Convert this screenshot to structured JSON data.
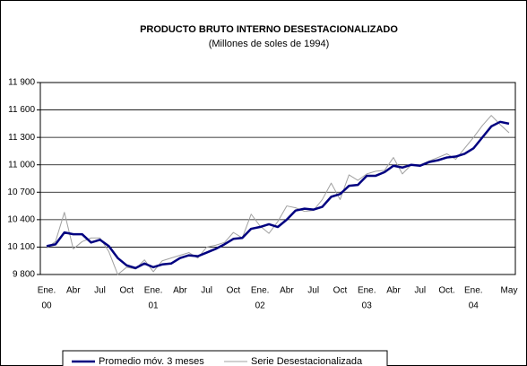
{
  "chart_data": {
    "type": "line",
    "title": "PRODUCTO BRUTO INTERNO DESESTACIONALIZADO",
    "subtitle": "(Millones de soles de 1994)",
    "categories": [
      "Ene.",
      null,
      null,
      "Abr",
      null,
      null,
      "Jul",
      null,
      null,
      "Oct",
      null,
      null,
      "Ene.",
      null,
      null,
      "Abr",
      null,
      null,
      "Jul",
      null,
      null,
      "Oct",
      null,
      null,
      "Ene.",
      null,
      null,
      "Abr",
      null,
      null,
      "Jul",
      null,
      null,
      "Oct",
      null,
      null,
      "Ene.",
      null,
      null,
      "Abr",
      null,
      null,
      "Jul",
      null,
      null,
      "Oct.",
      null,
      null,
      "Ene.",
      null,
      null,
      null,
      "May"
    ],
    "category_years": [
      "00",
      null,
      null,
      null,
      null,
      null,
      null,
      null,
      null,
      null,
      null,
      null,
      "01",
      null,
      null,
      null,
      null,
      null,
      null,
      null,
      null,
      null,
      null,
      null,
      "02",
      null,
      null,
      null,
      null,
      null,
      null,
      null,
      null,
      null,
      null,
      null,
      "03",
      null,
      null,
      null,
      null,
      null,
      null,
      null,
      null,
      null,
      null,
      null,
      "04",
      null,
      null,
      null,
      null
    ],
    "series": [
      {
        "name": "Promedio móv. 3 meses",
        "color": "#000080",
        "width": 2.5,
        "values": [
          10110,
          10130,
          10260,
          10240,
          10240,
          10150,
          10180,
          10110,
          9980,
          9900,
          9870,
          9920,
          9880,
          9910,
          9920,
          9980,
          10010,
          10000,
          10040,
          10080,
          10130,
          10190,
          10200,
          10300,
          10320,
          10350,
          10320,
          10400,
          10500,
          10520,
          10510,
          10540,
          10650,
          10680,
          10770,
          10780,
          10880,
          10880,
          10920,
          10990,
          10970,
          11000,
          10990,
          11030,
          11050,
          11080,
          11090,
          11120,
          11180,
          11300,
          11420,
          11470,
          11450
        ]
      },
      {
        "name": "Serie Desestacionalizada",
        "color": "#a0a0a0",
        "width": 1,
        "values": [
          10090,
          10160,
          10480,
          10080,
          10160,
          10200,
          10200,
          10050,
          9800,
          9880,
          9860,
          9960,
          9830,
          9950,
          9980,
          10010,
          10040,
          9980,
          10100,
          10120,
          10150,
          10260,
          10200,
          10460,
          10330,
          10250,
          10380,
          10550,
          10530,
          10490,
          10500,
          10620,
          10800,
          10620,
          10890,
          10830,
          10900,
          10930,
          10940,
          11080,
          10900,
          11000,
          11000,
          11040,
          11080,
          11120,
          11060,
          11180,
          11300,
          11430,
          11540,
          11440,
          11350
        ]
      }
    ],
    "ylim": [
      9800,
      11900
    ],
    "yticks": [
      {
        "value": 9800,
        "label": "9 800"
      },
      {
        "value": 10100,
        "label": "10 100"
      },
      {
        "value": 10400,
        "label": "10 400"
      },
      {
        "value": 10700,
        "label": "10 700"
      },
      {
        "value": 11000,
        "label": "11 000"
      },
      {
        "value": 11300,
        "label": "11 300"
      },
      {
        "value": 11600,
        "label": "11 600"
      },
      {
        "value": 11900,
        "label": "11 900"
      }
    ],
    "grid": true
  }
}
